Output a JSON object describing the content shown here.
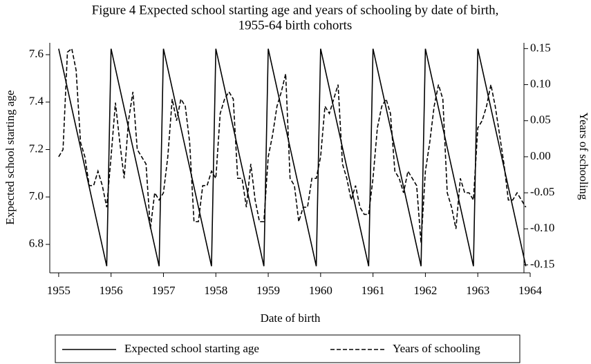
{
  "chart_data": {
    "type": "line",
    "title": "Figure 4 Expected school starting age and years of schooling by date of birth,",
    "subtitle": "1955-64 birth cohorts",
    "xlabel": "Date of birth",
    "ylabel": "Expected school starting age",
    "y2label": "Years of schooling",
    "x": [
      1955,
      1955.083,
      1955.167,
      1955.25,
      1955.333,
      1955.417,
      1955.5,
      1955.583,
      1955.667,
      1955.75,
      1955.833,
      1955.917,
      1956,
      1956.083,
      1956.167,
      1956.25,
      1956.333,
      1956.417,
      1956.5,
      1956.583,
      1956.667,
      1956.75,
      1956.833,
      1956.917,
      1957,
      1957.083,
      1957.167,
      1957.25,
      1957.333,
      1957.417,
      1957.5,
      1957.583,
      1957.667,
      1957.75,
      1957.833,
      1957.917,
      1958,
      1958.083,
      1958.167,
      1958.25,
      1958.333,
      1958.417,
      1958.5,
      1958.583,
      1958.667,
      1958.75,
      1958.833,
      1958.917,
      1959,
      1959.083,
      1959.167,
      1959.25,
      1959.333,
      1959.417,
      1959.5,
      1959.583,
      1959.667,
      1959.75,
      1959.833,
      1959.917,
      1960,
      1960.083,
      1960.167,
      1960.25,
      1960.333,
      1960.417,
      1960.5,
      1960.583,
      1960.667,
      1960.75,
      1960.833,
      1960.917,
      1961,
      1961.083,
      1961.167,
      1961.25,
      1961.333,
      1961.417,
      1961.5,
      1961.583,
      1961.667,
      1961.75,
      1961.833,
      1961.917,
      1962,
      1962.083,
      1962.167,
      1962.25,
      1962.333,
      1962.417,
      1962.5,
      1962.583,
      1962.667,
      1962.75,
      1962.833,
      1962.917,
      1963,
      1963.083,
      1963.167,
      1963.25,
      1963.333,
      1963.417,
      1963.5,
      1963.583,
      1963.667,
      1963.75,
      1963.833,
      1963.917
    ],
    "series": [
      {
        "name": "Expected school starting age",
        "color": "#000000",
        "dash": false,
        "values": [
          7.625,
          7.542,
          7.458,
          7.375,
          7.292,
          7.208,
          7.125,
          7.042,
          6.958,
          6.875,
          6.792,
          6.708,
          7.625,
          7.542,
          7.458,
          7.375,
          7.292,
          7.208,
          7.125,
          7.042,
          6.958,
          6.875,
          6.792,
          6.708,
          7.625,
          7.542,
          7.458,
          7.375,
          7.292,
          7.208,
          7.125,
          7.042,
          6.958,
          6.875,
          6.792,
          6.708,
          7.625,
          7.542,
          7.458,
          7.375,
          7.292,
          7.208,
          7.125,
          7.042,
          6.958,
          6.875,
          6.792,
          6.708,
          7.625,
          7.542,
          7.458,
          7.375,
          7.292,
          7.208,
          7.125,
          7.042,
          6.958,
          6.875,
          6.792,
          6.708,
          7.625,
          7.542,
          7.458,
          7.375,
          7.292,
          7.208,
          7.125,
          7.042,
          6.958,
          6.875,
          6.792,
          6.708,
          7.625,
          7.542,
          7.458,
          7.375,
          7.292,
          7.208,
          7.125,
          7.042,
          6.958,
          6.875,
          6.792,
          6.708,
          7.625,
          7.542,
          7.458,
          7.375,
          7.292,
          7.208,
          7.125,
          7.042,
          6.958,
          6.875,
          6.792,
          6.708,
          7.625,
          7.542,
          7.458,
          7.375,
          7.292,
          7.208,
          7.125,
          7.042,
          6.958,
          6.875,
          6.792,
          6.708
        ]
      },
      {
        "name": "Years of schooling",
        "color": "#000000",
        "dash": true,
        "axis": "y2",
        "values": [
          0.0,
          0.01,
          0.145,
          0.15,
          0.12,
          0.02,
          0.0,
          -0.04,
          -0.04,
          -0.02,
          -0.04,
          -0.07,
          0.0,
          0.075,
          0.02,
          -0.03,
          0.05,
          0.09,
          0.01,
          0.0,
          -0.01,
          -0.1,
          -0.05,
          -0.06,
          -0.05,
          0.0,
          0.08,
          0.05,
          0.08,
          0.07,
          0.02,
          -0.09,
          -0.09,
          -0.04,
          -0.04,
          -0.02,
          -0.03,
          0.06,
          0.08,
          0.09,
          0.08,
          -0.03,
          -0.03,
          -0.07,
          -0.01,
          -0.06,
          -0.09,
          -0.09,
          0.0,
          0.03,
          0.07,
          0.09,
          0.115,
          -0.03,
          -0.04,
          -0.09,
          -0.07,
          -0.07,
          -0.03,
          -0.03,
          0.0,
          0.07,
          0.06,
          0.08,
          0.1,
          -0.01,
          -0.03,
          -0.06,
          -0.04,
          -0.07,
          -0.08,
          -0.08,
          -0.03,
          0.04,
          0.07,
          0.08,
          0.06,
          -0.02,
          -0.03,
          -0.05,
          -0.02,
          -0.03,
          -0.04,
          -0.12,
          -0.02,
          0.02,
          0.07,
          0.1,
          0.08,
          -0.05,
          -0.07,
          -0.1,
          -0.03,
          -0.05,
          -0.05,
          -0.06,
          0.04,
          0.05,
          0.07,
          0.1,
          0.07,
          0.03,
          -0.01,
          -0.06,
          -0.06,
          -0.05,
          -0.06,
          -0.07
        ]
      }
    ],
    "xlim": [
      1954.83,
      1964
    ],
    "xticks": [
      1955,
      1956,
      1957,
      1958,
      1959,
      1960,
      1961,
      1962,
      1963,
      1964
    ],
    "ylim": [
      6.68,
      7.65
    ],
    "yticks": [
      6.8,
      {
        "value": 7,
        "label": "7.0"
      },
      7.2,
      7.4,
      7.6
    ],
    "y2lim": [
      -0.161,
      0.158
    ],
    "y2ticks": [
      -0.15,
      {
        "value": -0.1,
        "label": "-0.10"
      },
      -0.05,
      {
        "value": 0,
        "label": "0.00"
      },
      0.05,
      {
        "value": 0.1,
        "label": "0.10"
      },
      0.15
    ],
    "legend": "bottom",
    "grid": false
  }
}
